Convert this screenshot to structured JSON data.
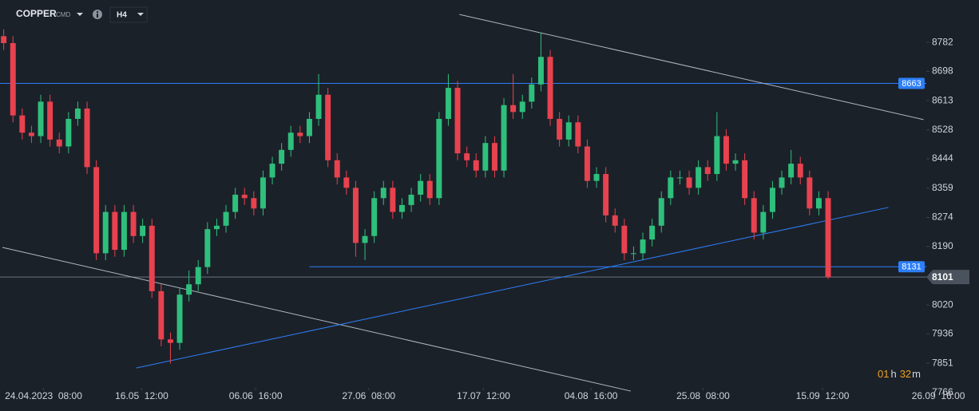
{
  "chart_data": {
    "type": "candlestick",
    "symbol": "COPPER",
    "market": "CMD",
    "timeframe": "H4",
    "open": [
      8800,
      8780,
      8570,
      8520,
      8510,
      8610,
      8500,
      8480,
      8560,
      8590,
      8420,
      8170,
      8290,
      8180,
      8290,
      8220,
      8250,
      8060,
      7920,
      7910,
      8050,
      8080,
      8130,
      8240,
      8250,
      8290,
      8340,
      8330,
      8300,
      8390,
      8430,
      8470,
      8520,
      8510,
      8560,
      8630,
      8440,
      8390,
      8360,
      8200,
      8220,
      8330,
      8360,
      8290,
      8310,
      8340,
      8380,
      8330,
      8560,
      8650,
      8460,
      8440,
      8410,
      8490,
      8410,
      8600,
      8580,
      8610,
      8660,
      8740,
      8560,
      8500,
      8550,
      8480,
      8380,
      8400,
      8280,
      8250,
      8170,
      8170,
      8210,
      8250,
      8330,
      8390,
      8390,
      8360,
      8420,
      8400,
      8510,
      8430,
      8440,
      8330,
      8230,
      8290,
      8360,
      8390,
      8430,
      8390,
      8300,
      8330
    ],
    "high": [
      8820,
      8800,
      8590,
      8540,
      8630,
      8630,
      8520,
      8580,
      8610,
      8610,
      8440,
      8310,
      8310,
      8310,
      8310,
      8270,
      8270,
      8080,
      7940,
      8070,
      8120,
      8150,
      8260,
      8270,
      8310,
      8360,
      8360,
      8350,
      8410,
      8450,
      8490,
      8540,
      8540,
      8580,
      8690,
      8650,
      8460,
      8410,
      8380,
      8240,
      8350,
      8380,
      8380,
      8330,
      8360,
      8400,
      8400,
      8580,
      8690,
      8670,
      8480,
      8460,
      8510,
      8510,
      8620,
      8690,
      8630,
      8680,
      8810,
      8760,
      8580,
      8570,
      8570,
      8500,
      8420,
      8420,
      8300,
      8270,
      8190,
      8230,
      8270,
      8350,
      8410,
      8410,
      8410,
      8440,
      8440,
      8580,
      8530,
      8460,
      8460,
      8350,
      8310,
      8380,
      8410,
      8470,
      8450,
      8410,
      8350,
      8350
    ],
    "low": [
      8760,
      8550,
      8500,
      8490,
      8490,
      8480,
      8460,
      8460,
      8540,
      8400,
      8150,
      8150,
      8160,
      8160,
      8200,
      8200,
      8040,
      7900,
      7850,
      7890,
      8030,
      8060,
      8110,
      8220,
      8230,
      8270,
      8310,
      8280,
      8280,
      8370,
      8410,
      8450,
      8490,
      8490,
      8540,
      8420,
      8370,
      8340,
      8160,
      8150,
      8200,
      8310,
      8270,
      8270,
      8290,
      8320,
      8310,
      8310,
      8540,
      8440,
      8420,
      8390,
      8390,
      8390,
      8390,
      8560,
      8560,
      8590,
      8640,
      8540,
      8480,
      8480,
      8460,
      8360,
      8360,
      8260,
      8230,
      8150,
      8150,
      8150,
      8190,
      8230,
      8310,
      8370,
      8340,
      8340,
      8380,
      8380,
      8410,
      8410,
      8310,
      8210,
      8210,
      8270,
      8340,
      8370,
      8370,
      8280,
      8280,
      8095
    ],
    "close": [
      8780,
      8570,
      8520,
      8510,
      8610,
      8500,
      8480,
      8560,
      8590,
      8420,
      8170,
      8290,
      8180,
      8290,
      8220,
      8250,
      8060,
      7920,
      7910,
      8050,
      8080,
      8130,
      8240,
      8250,
      8290,
      8340,
      8330,
      8300,
      8390,
      8430,
      8470,
      8520,
      8510,
      8560,
      8630,
      8440,
      8390,
      8360,
      8200,
      8220,
      8330,
      8360,
      8290,
      8310,
      8340,
      8380,
      8330,
      8560,
      8650,
      8460,
      8440,
      8410,
      8490,
      8410,
      8600,
      8580,
      8610,
      8660,
      8740,
      8560,
      8500,
      8550,
      8480,
      8380,
      8400,
      8280,
      8250,
      8170,
      8170,
      8210,
      8250,
      8330,
      8390,
      8390,
      8360,
      8420,
      8400,
      8510,
      8430,
      8440,
      8330,
      8230,
      8290,
      8360,
      8390,
      8430,
      8390,
      8300,
      8330,
      8101
    ],
    "up_color": "#2fbf7c",
    "down_color": "#e8424f",
    "xlim": [
      -0.4,
      99.6
    ],
    "xticks": [
      {
        "value": 4.3,
        "label": "24.04.2023  08:00"
      },
      {
        "value": 14.9,
        "label": "16.05  12:00"
      },
      {
        "value": 27.2,
        "label": "06.06  16:00"
      },
      {
        "value": 39.4,
        "label": "27.06  08:00"
      },
      {
        "value": 51.8,
        "label": "17.07  12:00"
      },
      {
        "value": 63.4,
        "label": "04.08  16:00"
      },
      {
        "value": 75.5,
        "label": "25.08  08:00"
      },
      {
        "value": 88.4,
        "label": "15.09  12:00"
      },
      {
        "value": 100.9,
        "label": "26.09  16:00"
      }
    ],
    "ylim": [
      7747,
      8905
    ],
    "yticks": [
      8782,
      8698,
      8613,
      8528,
      8444,
      8359,
      8274,
      8190,
      8020,
      7936,
      7851,
      7766
    ],
    "last_price": 8101,
    "levels": [
      {
        "value": 8663,
        "color": "#2d7ff9",
        "from": -0.4
      },
      {
        "value": 8131,
        "color": "#2d7ff9",
        "from": 33.0
      }
    ],
    "trend_lines": [
      {
        "color": "#aeb6c2",
        "x": [
          49.2,
          99.3
        ],
        "y": [
          8863,
          8558
        ]
      },
      {
        "color": "#aeb6c2",
        "x": [
          -0.14,
          67.7
        ],
        "y": [
          8187,
          7770
        ]
      },
      {
        "color": "#2d7ff9",
        "x": [
          14.3,
          95.5
        ],
        "y": [
          7837,
          8303
        ]
      }
    ],
    "countdown": {
      "hours": "01",
      "h": "h",
      "minutes": "32",
      "m": "m"
    }
  }
}
